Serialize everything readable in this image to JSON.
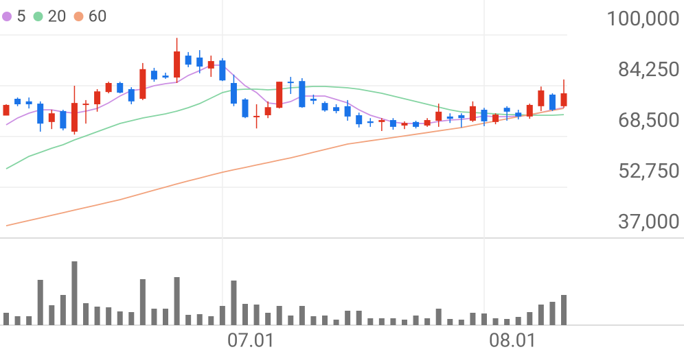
{
  "chart_data": {
    "type": "candlestick",
    "categories": [
      null,
      null,
      null,
      null,
      null,
      null,
      null,
      null,
      null,
      null,
      null,
      null,
      null,
      null,
      null,
      null,
      null,
      null,
      null,
      "07.01",
      null,
      null,
      null,
      null,
      null,
      null,
      null,
      null,
      null,
      null,
      null,
      null,
      null,
      null,
      null,
      null,
      null,
      null,
      null,
      null,
      null,
      null,
      "08.01",
      null,
      null,
      null,
      null,
      null,
      null,
      null
    ],
    "open": [
      75000,
      80200,
      79400,
      78700,
      73000,
      76400,
      70000,
      78300,
      78500,
      82300,
      85100,
      83200,
      80200,
      88900,
      87400,
      86800,
      93600,
      93000,
      89600,
      92100,
      85100,
      80000,
      74500,
      75100,
      77400,
      85500,
      85700,
      80200,
      78900,
      77600,
      77900,
      75100,
      73200,
      73000,
      73600,
      71900,
      73000,
      71900,
      73400,
      74700,
      75100,
      73400,
      76800,
      73000,
      77400,
      75900,
      74700,
      77900,
      81500,
      77900
    ],
    "high": [
      78500,
      80600,
      80600,
      79400,
      76800,
      76800,
      84250,
      79800,
      83200,
      85500,
      85500,
      83800,
      91300,
      89800,
      88300,
      99100,
      94700,
      95300,
      93600,
      92800,
      87700,
      80400,
      78500,
      79400,
      85500,
      87000,
      86600,
      81500,
      79400,
      78500,
      79800,
      75900,
      74200,
      74200,
      74200,
      73200,
      73400,
      74200,
      78700,
      75700,
      75700,
      79400,
      77400,
      75700,
      77900,
      76800,
      78700,
      84000,
      81900,
      86200
    ],
    "low": [
      75000,
      77900,
      77200,
      70000,
      70800,
      70400,
      69100,
      72500,
      76200,
      81900,
      81900,
      78500,
      79800,
      85500,
      86400,
      85100,
      90000,
      88100,
      87000,
      85700,
      77900,
      74200,
      71000,
      74200,
      77200,
      81700,
      77400,
      78500,
      76200,
      75700,
      73400,
      71300,
      71500,
      70200,
      70600,
      70800,
      71000,
      71500,
      71500,
      72700,
      71300,
      73000,
      71700,
      72300,
      73400,
      73800,
      74000,
      76400,
      76400,
      77400
    ],
    "close": [
      78300,
      78500,
      78500,
      72500,
      75700,
      71000,
      78900,
      78700,
      82500,
      85100,
      82100,
      79400,
      89400,
      86200,
      86800,
      94900,
      90800,
      90200,
      91900,
      85900,
      78700,
      74500,
      74900,
      77600,
      85500,
      85100,
      77600,
      79600,
      76600,
      76400,
      74700,
      72300,
      72700,
      73600,
      71500,
      72700,
      71500,
      73600,
      76200,
      74000,
      74200,
      77900,
      73200,
      75300,
      76200,
      74700,
      78300,
      82800,
      76800,
      81900
    ],
    "up_color": "#e0321e",
    "down_color": "#1a73e8",
    "series": [
      {
        "name": "5",
        "color": "#cc8fe3",
        "values": [
          72110,
          74240,
          75730,
          76790,
          76790,
          76150,
          75730,
          76370,
          77220,
          78920,
          81050,
          82750,
          83180,
          84250,
          84880,
          85310,
          87440,
          88930,
          90630,
          90630,
          87440,
          84250,
          82120,
          78920,
          78500,
          79350,
          81050,
          81050,
          81050,
          79990,
          78920,
          76790,
          75090,
          74030,
          72960,
          72540,
          72540,
          72540,
          73180,
          73600,
          73810,
          74240,
          74880,
          74660,
          74660,
          74880,
          75090,
          75940,
          76790,
          77430
        ]
      },
      {
        "name": "20",
        "color": "#84d4a2",
        "values": [
          58480,
          60400,
          62320,
          63590,
          64870,
          65940,
          67430,
          68700,
          69980,
          71260,
          72540,
          73390,
          74240,
          74880,
          75520,
          76370,
          77430,
          78710,
          80410,
          82120,
          82970,
          83180,
          83180,
          82970,
          83180,
          83610,
          83820,
          84030,
          84030,
          83820,
          83610,
          83180,
          82540,
          81900,
          81050,
          80200,
          79350,
          78500,
          77640,
          76790,
          76150,
          75940,
          75730,
          75520,
          75300,
          75300,
          75090,
          75090,
          75090,
          75300
        ]
      },
      {
        "name": "60",
        "color": "#f2a27c",
        "values": [
          40810,
          41620,
          42430,
          43240,
          44050,
          44860,
          45670,
          46480,
          47280,
          48090,
          48900,
          49880,
          50860,
          51840,
          52820,
          53800,
          54710,
          55610,
          56520,
          57420,
          58170,
          58910,
          59660,
          60400,
          61150,
          61890,
          62740,
          63600,
          64450,
          65300,
          66150,
          66660,
          67170,
          67680,
          68190,
          68700,
          69210,
          69720,
          70240,
          70750,
          71260,
          71940,
          72620,
          73300,
          73980,
          74660,
          75300,
          75940,
          76580,
          77220
        ]
      }
    ],
    "volume": [
      18,
      13,
      13,
      66,
      29,
      44,
      93,
      32,
      27,
      26,
      20,
      19,
      67,
      24,
      24,
      70,
      15,
      16,
      13,
      28,
      65,
      31,
      30,
      18,
      28,
      14,
      28,
      13,
      14,
      8,
      21,
      21,
      10,
      10,
      10,
      8,
      14,
      10,
      24,
      9,
      8,
      18,
      17,
      10,
      9,
      12,
      19,
      30,
      34,
      44
    ],
    "volume_color": "#777777",
    "vlim": [
      0,
      100
    ],
    "ylim": [
      37000,
      100000
    ],
    "yticks": [
      {
        "value": 37000,
        "label": "37,000"
      },
      {
        "value": 52750,
        "label": "52,750"
      },
      {
        "value": 68500,
        "label": "68,500"
      },
      {
        "value": 84250,
        "label": "84,250"
      },
      {
        "value": 100000,
        "label": "100,000"
      }
    ],
    "grid": true
  }
}
